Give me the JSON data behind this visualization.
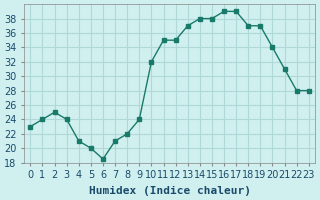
{
  "x": [
    0,
    1,
    2,
    3,
    4,
    5,
    6,
    7,
    8,
    9,
    10,
    11,
    12,
    13,
    14,
    15,
    16,
    17,
    18,
    19,
    20,
    21,
    22,
    23
  ],
  "y": [
    23,
    24,
    25,
    24,
    21,
    20,
    18.5,
    21,
    22,
    24,
    32,
    35,
    35,
    37,
    38,
    38,
    39,
    39,
    37,
    37,
    34,
    31,
    28,
    28
  ],
  "xlabel": "Humidex (Indice chaleur)",
  "ylim": [
    18,
    40
  ],
  "yticks": [
    18,
    20,
    22,
    24,
    26,
    28,
    30,
    32,
    34,
    36,
    38
  ],
  "xticks": [
    0,
    1,
    2,
    3,
    4,
    5,
    6,
    7,
    8,
    9,
    10,
    11,
    12,
    13,
    14,
    15,
    16,
    17,
    18,
    19,
    20,
    21,
    22,
    23
  ],
  "line_color": "#1a7a6a",
  "bg_color": "#d0f0f0",
  "grid_color": "#b0d8d8",
  "xlabel_fontsize": 8,
  "tick_fontsize": 7
}
